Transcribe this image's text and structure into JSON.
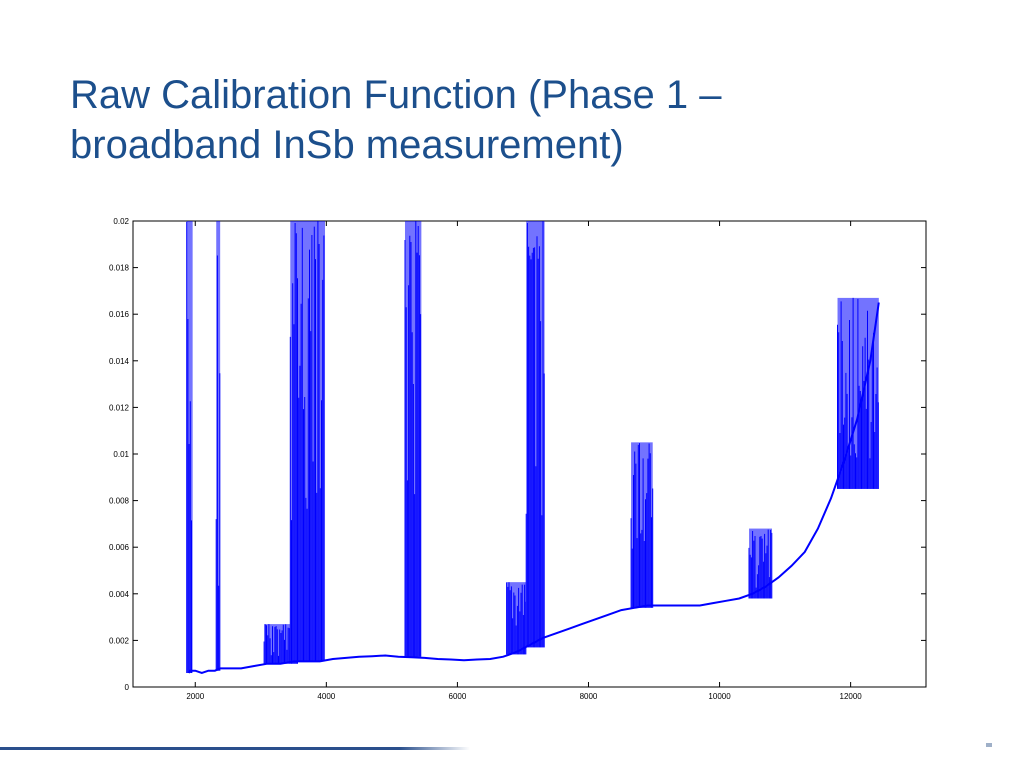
{
  "slide": {
    "title_line1": "Raw Calibration Function (Phase 1 –",
    "title_line2": "broadband InSb measurement)"
  },
  "colors": {
    "title": "#1c4f8c",
    "series": "#0000ff",
    "axis": "#000000",
    "footer_rule": "#2a4f8c"
  },
  "chart_data": {
    "type": "line",
    "title": "",
    "xlabel": "",
    "ylabel": "",
    "xlim": [
      1050,
      13150
    ],
    "ylim": [
      0,
      0.02
    ],
    "grid": false,
    "legend": "none",
    "x_ticks": [
      2000,
      4000,
      6000,
      8000,
      10000,
      12000
    ],
    "x_tick_labels": [
      "2000",
      "4000",
      "6000",
      "8000",
      "10000",
      "12000"
    ],
    "y_ticks": [
      0,
      0.002,
      0.004,
      0.006,
      0.008,
      0.01,
      0.012,
      0.014,
      0.016,
      0.018,
      0.02
    ],
    "y_tick_labels": [
      "0",
      "0.002",
      "0.004",
      "0.006",
      "0.008",
      "0.01",
      "0.012",
      "0.014",
      "0.016",
      "0.018",
      "0.02"
    ],
    "series": [
      {
        "x": [
          1900,
          1920,
          2000,
          2100,
          2200,
          2300,
          2380,
          2500,
          2700,
          2900,
          3100,
          3300,
          3500,
          3700,
          3900,
          4100,
          4300,
          4500,
          4700,
          4900,
          5100,
          5300,
          5500,
          5700,
          5900,
          6100,
          6300,
          6500,
          6700,
          6900,
          7100,
          7300,
          7500,
          7700,
          7900,
          8100,
          8300,
          8500,
          8700,
          8900,
          9100,
          9300,
          9500,
          9700,
          9900,
          10100,
          10300,
          10500,
          10700,
          10900,
          11100,
          11300,
          11500,
          11700,
          11900,
          12100,
          12300,
          12430
        ],
        "y": [
          0.0006,
          0.0007,
          0.0007,
          0.0006,
          0.0007,
          0.0007,
          0.0008,
          0.0008,
          0.0008,
          0.0009,
          0.001,
          0.001,
          0.0011,
          0.0011,
          0.0011,
          0.0012,
          0.00125,
          0.0013,
          0.00132,
          0.00135,
          0.0013,
          0.00128,
          0.00125,
          0.0012,
          0.00118,
          0.00115,
          0.00118,
          0.0012,
          0.0013,
          0.0015,
          0.0018,
          0.0021,
          0.0023,
          0.0025,
          0.0027,
          0.0029,
          0.0031,
          0.0033,
          0.0034,
          0.0035,
          0.0035,
          0.0035,
          0.0035,
          0.0035,
          0.0036,
          0.0037,
          0.0038,
          0.004,
          0.0043,
          0.0047,
          0.0052,
          0.0058,
          0.0068,
          0.0081,
          0.0097,
          0.0115,
          0.014,
          0.0165
        ]
      }
    ],
    "noise_bands": [
      {
        "x_start": 1870,
        "x_end": 1960,
        "y_min": 0.0006,
        "y_max": 0.02
      },
      {
        "x_start": 2320,
        "x_end": 2380,
        "y_min": 0.0007,
        "y_max": 0.02
      },
      {
        "x_start": 3050,
        "x_end": 3450,
        "y_min": 0.001,
        "y_max": 0.0027
      },
      {
        "x_start": 3450,
        "x_end": 3560,
        "y_min": 0.001,
        "y_max": 0.02
      },
      {
        "x_start": 3560,
        "x_end": 3980,
        "y_min": 0.0011,
        "y_max": 0.02
      },
      {
        "x_start": 5200,
        "x_end": 5450,
        "y_min": 0.0013,
        "y_max": 0.02
      },
      {
        "x_start": 6750,
        "x_end": 7050,
        "y_min": 0.0014,
        "y_max": 0.0045
      },
      {
        "x_start": 7050,
        "x_end": 7330,
        "y_min": 0.0017,
        "y_max": 0.02
      },
      {
        "x_start": 8650,
        "x_end": 8980,
        "y_min": 0.0034,
        "y_max": 0.0105
      },
      {
        "x_start": 10450,
        "x_end": 10800,
        "y_min": 0.0038,
        "y_max": 0.0068
      },
      {
        "x_start": 11800,
        "x_end": 12430,
        "y_min": 0.0085,
        "y_max": 0.0167
      }
    ]
  }
}
